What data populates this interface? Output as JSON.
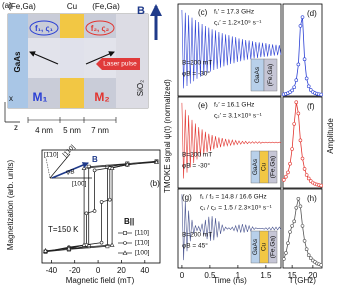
{
  "schematic": {
    "label": "(a)",
    "layers": [
      "(Fe,Ga)",
      "Cu",
      "(Fe,Ga)"
    ],
    "field": "B",
    "mode1": "f₁, ς₁",
    "mode2": "f₂, ς₂",
    "substrate": "GaAs",
    "laser": "Laser pulse",
    "cap": "SiO₂",
    "m1": "M₁",
    "m2": "M₂",
    "thicknesses": [
      "4 nm",
      "5 nm",
      "7 nm"
    ],
    "axes": [
      "z",
      "x"
    ]
  },
  "chart_data": [
    {
      "type": "line",
      "label": "(b)",
      "xlabel": "Magnetic field (mT)",
      "ylabel": "Magnetization (arb. units)",
      "xlim": [
        -48,
        53
      ],
      "ylim": [
        -1.25,
        1.25
      ],
      "xticks": [
        -40,
        -20,
        0,
        20,
        40
      ],
      "annotation": "T=150 K",
      "legend_title": "B||",
      "inset": {
        "directions": [
          "[110]",
          "[1̄10]",
          "[100]"
        ],
        "field": "B",
        "angle": "φB"
      },
      "series": [
        {
          "name": "[110]",
          "color": "#222",
          "marker": "square",
          "x": [
            -45,
            -25,
            8,
            8,
            25,
            50,
            25,
            -8,
            -8,
            -25,
            -45
          ],
          "values": [
            -1,
            -0.95,
            -0.88,
            0.88,
            0.95,
            1,
            0.95,
            0.88,
            -0.88,
            -0.95,
            -1
          ]
        },
        {
          "name": "[1̄10]",
          "color": "#222",
          "marker": "circle",
          "x": [
            -45,
            -25,
            3,
            3,
            10,
            10,
            25,
            50,
            25,
            -3,
            -3,
            -10,
            -10,
            -25,
            -45
          ],
          "values": [
            -1,
            -0.9,
            -0.8,
            0.1,
            0.15,
            0.85,
            0.92,
            1,
            0.92,
            0.8,
            -0.1,
            -0.15,
            -0.85,
            -0.92,
            -1
          ]
        },
        {
          "name": "[100]",
          "color": "#222",
          "marker": "triangle",
          "x": [
            -45,
            -25,
            12,
            12,
            25,
            50,
            25,
            -12,
            -12,
            -25,
            -45
          ],
          "values": [
            -0.98,
            -0.93,
            -0.85,
            0.85,
            0.93,
            0.98,
            0.93,
            0.85,
            -0.85,
            -0.93,
            -0.98
          ]
        }
      ]
    },
    {
      "type": "line",
      "label": "(c)",
      "ylabel": "TMOKE signal ψ(t) (normalized)",
      "annotations": [
        "f₁′ = 17.3 GHz",
        "ς₁′ = 1.2×10⁹ s⁻¹",
        "B=200 mT",
        "φB = -30°"
      ],
      "layers": [
        "GaAs",
        "(Fe,Ga)"
      ],
      "layer_colors": [
        "#b8d0ea",
        "#c6c6d6"
      ],
      "xlim": [
        -0.07,
        1.77
      ],
      "ylim": [
        -1.15,
        1.15
      ],
      "x": [
        0,
        0.03,
        0.06,
        0.09,
        0.12,
        0.15,
        0.18,
        0.21,
        0.24,
        0.27,
        0.3,
        0.33,
        0.36,
        0.39,
        0.42,
        0.45,
        0.48,
        0.51,
        0.54,
        0.57,
        0.6,
        0.63,
        0.66,
        0.69,
        0.72,
        0.75,
        0.78,
        0.81,
        0.84,
        0.87,
        0.9,
        0.93,
        0.96,
        0.99,
        1.02,
        1.05,
        1.08,
        1.11,
        1.14,
        1.17,
        1.2,
        1.23,
        1.26,
        1.29,
        1.32,
        1.35,
        1.38,
        1.41,
        1.44,
        1.47,
        1.5,
        1.53,
        1.56,
        1.59,
        1.62,
        1.65,
        1.68,
        1.71,
        1.74,
        1.77
      ],
      "series": [
        {
          "color": "#2a3fd4",
          "values": [
            1,
            -0.96,
            0.93,
            -0.9,
            0.87,
            -0.84,
            0.81,
            -0.78,
            0.75,
            -0.72,
            0.7,
            -0.67,
            0.65,
            -0.63,
            0.6,
            -0.58,
            0.56,
            -0.54,
            0.52,
            -0.5,
            0.49,
            -0.47,
            0.45,
            -0.44,
            0.42,
            -0.41,
            0.39,
            -0.38,
            0.37,
            -0.35,
            0.34,
            -0.33,
            0.32,
            -0.3,
            0.29,
            -0.28,
            0.27,
            -0.26,
            0.25,
            -0.24,
            0.24,
            -0.23,
            0.22,
            -0.21,
            0.2,
            -0.2,
            0.19,
            -0.18,
            0.18,
            -0.17,
            0.17,
            -0.16,
            0.15,
            -0.15,
            0.14,
            -0.14,
            0.13,
            -0.13,
            0.12,
            -0.12
          ]
        }
      ]
    },
    {
      "type": "line",
      "label": "(d)",
      "ylabel": "Amplitude",
      "xlim": [
        12.8,
        22.2
      ],
      "ylim": [
        0,
        1.05
      ],
      "x": [
        13,
        13.5,
        14,
        14.5,
        15,
        15.5,
        16,
        16.5,
        17,
        17.5,
        18,
        18.5,
        19,
        19.5,
        20,
        20.5,
        21,
        21.5,
        22
      ],
      "series": [
        {
          "color": "#2a3fd4",
          "marker": "circle",
          "values": [
            0.019,
            0.024,
            0.032,
            0.044,
            0.064,
            0.1,
            0.18,
            0.36,
            0.8,
            0.9,
            0.42,
            0.2,
            0.11,
            0.069,
            0.047,
            0.034,
            0.026,
            0.02,
            0.016
          ]
        }
      ]
    },
    {
      "type": "line",
      "label": "(e)",
      "annotations": [
        "f₂′ = 16.1 GHz",
        "ς₂′ = 3.1×10⁹ s⁻¹",
        "B=200 mT",
        "φB = -30°"
      ],
      "layers": [
        "GaAs",
        "Cu",
        "(Fe,Ga)"
      ],
      "layer_colors": [
        "#b8d0ea",
        "#f2c744",
        "#c6c6d6"
      ],
      "xlim": [
        -0.07,
        1.77
      ],
      "ylim": [
        -1.15,
        1.15
      ],
      "x": [
        0,
        0.03,
        0.06,
        0.09,
        0.12,
        0.15,
        0.18,
        0.21,
        0.24,
        0.27,
        0.3,
        0.33,
        0.36,
        0.39,
        0.42,
        0.45,
        0.48,
        0.51,
        0.54,
        0.57,
        0.6,
        0.63,
        0.66,
        0.69,
        0.72,
        0.75,
        0.78,
        0.81,
        0.84,
        0.87,
        0.9,
        0.93,
        0.96,
        0.99,
        1.02,
        1.05,
        1.08,
        1.11,
        1.14,
        1.17,
        1.2,
        1.23,
        1.26,
        1.29,
        1.32,
        1.35,
        1.38,
        1.41,
        1.44,
        1.47,
        1.5,
        1.53,
        1.56,
        1.59,
        1.62,
        1.65,
        1.68,
        1.71,
        1.74,
        1.77
      ],
      "series": [
        {
          "color": "#e2342f",
          "values": [
            1,
            -0.91,
            0.83,
            -0.76,
            0.69,
            -0.63,
            0.57,
            -0.52,
            0.48,
            -0.43,
            0.39,
            -0.36,
            0.33,
            -0.3,
            0.27,
            -0.25,
            0.22,
            -0.21,
            0.19,
            -0.17,
            0.16,
            -0.14,
            0.13,
            -0.12,
            0.11,
            -0.1,
            0.09,
            -0.08,
            0.07,
            -0.07,
            0.06,
            -0.06,
            0.05,
            -0.05,
            0.04,
            -0.04,
            0.03,
            -0.03,
            0.03,
            -0.03,
            0.02,
            -0.02,
            0.02,
            -0.02,
            0.02,
            -0.02,
            0.02,
            -0.02,
            0.01,
            -0.01,
            0.01,
            -0.01,
            0.01,
            -0.01,
            0.01,
            -0.01,
            0.01,
            -0.01,
            0.01,
            -0.01
          ]
        }
      ]
    },
    {
      "type": "line",
      "label": "(f)",
      "xlim": [
        12.8,
        22.2
      ],
      "ylim": [
        0,
        1.05
      ],
      "x": [
        13,
        13.5,
        14,
        14.5,
        15,
        15.5,
        16,
        16.5,
        17,
        17.5,
        18,
        18.5,
        19,
        19.5,
        20,
        20.5,
        21,
        21.5,
        22
      ],
      "series": [
        {
          "color": "#e2342f",
          "marker": "circle",
          "values": [
            0.094,
            0.13,
            0.18,
            0.28,
            0.45,
            0.74,
            0.99,
            0.86,
            0.55,
            0.34,
            0.22,
            0.15,
            0.11,
            0.08,
            0.062,
            0.049,
            0.04,
            0.033,
            0.028
          ]
        }
      ]
    },
    {
      "type": "line",
      "label": "(g)",
      "xlabel": "Time (ns)",
      "annotations": [
        "f₁ / f₂ = 14.8 / 16.6 GHz",
        "ς₁ / ς₂ = 1.5 / 2.3×10⁹ s⁻¹",
        "B=200 mT",
        "φB = 45°"
      ],
      "layers": [
        "GaAs",
        "Cu",
        "(Fe,Ga)"
      ],
      "layer_colors": [
        "#b8d0ea",
        "#f2c744",
        "#c6c6d6"
      ],
      "xlim": [
        -0.07,
        1.77
      ],
      "ylim": [
        -1.15,
        1.15
      ],
      "xticks": [
        0,
        0.5,
        1,
        1.5
      ],
      "x": [
        0,
        0.03,
        0.06,
        0.09,
        0.12,
        0.15,
        0.18,
        0.21,
        0.24,
        0.27,
        0.3,
        0.33,
        0.36,
        0.39,
        0.42,
        0.45,
        0.48,
        0.51,
        0.54,
        0.57,
        0.6,
        0.63,
        0.66,
        0.69,
        0.72,
        0.75,
        0.78,
        0.81,
        0.84,
        0.87,
        0.9,
        0.93,
        0.96,
        0.99,
        1.02,
        1.05,
        1.08,
        1.11,
        1.14,
        1.17,
        1.2,
        1.23,
        1.26,
        1.29,
        1.32,
        1.35,
        1.38,
        1.41,
        1.44,
        1.47,
        1.5,
        1.53,
        1.56,
        1.59,
        1.62,
        1.65,
        1.68,
        1.71,
        1.74,
        1.77
      ],
      "series": [
        {
          "color": "#4a5590",
          "values": [
            1,
            -0.92,
            0.8,
            -0.66,
            0.52,
            -0.37,
            0.25,
            -0.15,
            0.09,
            -0.06,
            0.06,
            -0.09,
            0.14,
            -0.2,
            0.25,
            -0.31,
            0.34,
            -0.36,
            0.36,
            -0.34,
            0.3,
            -0.26,
            0.21,
            -0.16,
            0.11,
            -0.07,
            0.04,
            -0.02,
            0.02,
            -0.03,
            0.04,
            -0.06,
            0.08,
            -0.09,
            0.11,
            -0.12,
            0.13,
            -0.12,
            0.11,
            -0.1,
            0.08,
            -0.07,
            0.05,
            -0.03,
            0.02,
            -0.01,
            0.01,
            -0.01,
            0.01,
            -0.02,
            0.02,
            -0.03,
            0.03,
            -0.04,
            0.04,
            -0.04,
            0.04,
            -0.04,
            0.04,
            -0.03
          ]
        }
      ]
    },
    {
      "type": "line",
      "label": "(h)",
      "xlabel": "f (GHz)",
      "xlim": [
        12.8,
        22.2
      ],
      "ylim": [
        0,
        1.05
      ],
      "xticks": [
        15,
        20
      ],
      "x": [
        13,
        13.5,
        14,
        14.5,
        15,
        15.5,
        16,
        16.5,
        17,
        17.5,
        18,
        18.5,
        19,
        19.5,
        20,
        20.5,
        21,
        21.5,
        22
      ],
      "series": [
        {
          "color": "#555",
          "marker": "circle",
          "values": [
            0.12,
            0.2,
            0.33,
            0.48,
            0.56,
            0.62,
            0.8,
            0.92,
            0.82,
            0.56,
            0.36,
            0.25,
            0.17,
            0.13,
            0.1,
            0.08,
            0.06,
            0.05,
            0.04
          ]
        }
      ]
    }
  ]
}
